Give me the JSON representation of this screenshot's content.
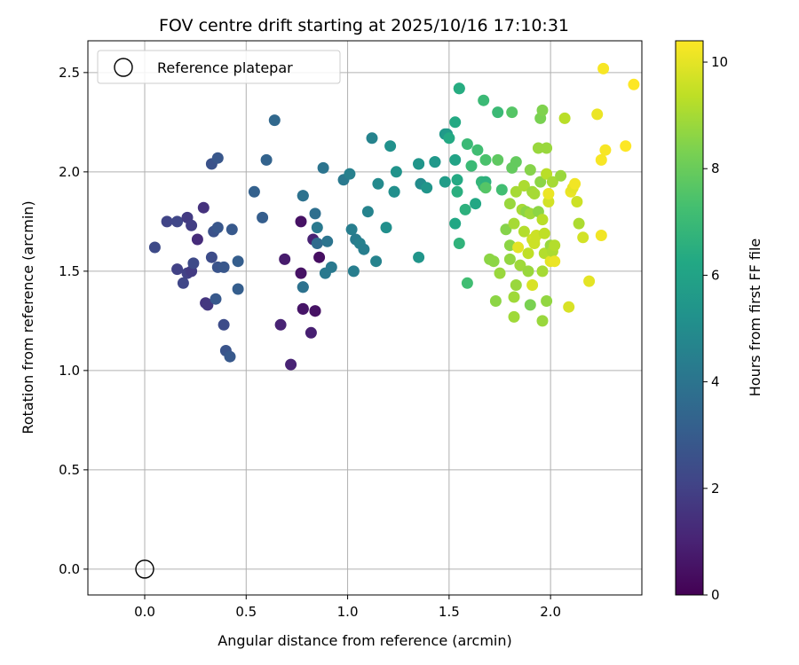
{
  "chart_data": {
    "type": "scatter",
    "title": "FOV centre drift starting at 2025/10/16 17:10:31",
    "xlabel": "Angular distance from reference (arcmin)",
    "ylabel": "Rotation from reference (arcmin)",
    "xlim": [
      -0.28,
      2.45
    ],
    "ylim": [
      -0.13,
      2.66
    ],
    "xticks": [
      "0.0",
      "0.5",
      "1.0",
      "1.5",
      "2.0"
    ],
    "yticks": [
      "0.0",
      "0.5",
      "1.0",
      "1.5",
      "2.0",
      "2.5"
    ],
    "grid": true,
    "colormap": "viridis",
    "colorbar": {
      "label": "Hours from first FF file",
      "range": [
        0,
        10.4
      ],
      "ticks": [
        "0",
        "2",
        "4",
        "6",
        "8",
        "10"
      ]
    },
    "legend": {
      "position": "top-left",
      "entries": [
        "Reference platepar"
      ]
    },
    "reference_point": {
      "x": 0.0,
      "y": 0.0
    },
    "points": [
      [
        0.05,
        1.62,
        2.3
      ],
      [
        0.11,
        1.75,
        2.1
      ],
      [
        0.16,
        1.75,
        2.2
      ],
      [
        0.16,
        1.51,
        2.0
      ],
      [
        0.19,
        1.44,
        2.2
      ],
      [
        0.21,
        1.49,
        2.0
      ],
      [
        0.21,
        1.77,
        1.8
      ],
      [
        0.23,
        1.73,
        1.9
      ],
      [
        0.23,
        1.5,
        1.8
      ],
      [
        0.24,
        1.54,
        2.3
      ],
      [
        0.26,
        1.66,
        1.3
      ],
      [
        0.29,
        1.82,
        1.5
      ],
      [
        0.3,
        1.34,
        1.6
      ],
      [
        0.31,
        1.33,
        1.7
      ],
      [
        0.33,
        1.57,
        2.4
      ],
      [
        0.33,
        2.04,
        2.6
      ],
      [
        0.34,
        1.7,
        2.6
      ],
      [
        0.35,
        1.36,
        2.9
      ],
      [
        0.36,
        1.72,
        2.8
      ],
      [
        0.36,
        2.07,
        2.8
      ],
      [
        0.36,
        1.52,
        2.7
      ],
      [
        0.39,
        1.52,
        2.8
      ],
      [
        0.39,
        1.23,
        2.4
      ],
      [
        0.4,
        1.1,
        2.7
      ],
      [
        0.42,
        1.07,
        2.9
      ],
      [
        0.43,
        1.71,
        2.9
      ],
      [
        0.46,
        1.55,
        3.1
      ],
      [
        0.46,
        1.41,
        3.1
      ],
      [
        0.54,
        1.9,
        3.2
      ],
      [
        0.58,
        1.77,
        3.1
      ],
      [
        0.6,
        2.06,
        3.3
      ],
      [
        0.64,
        2.26,
        3.5
      ],
      [
        0.67,
        1.23,
        1.0
      ],
      [
        0.69,
        1.56,
        0.8
      ],
      [
        0.72,
        1.03,
        1.0
      ],
      [
        0.77,
        1.75,
        0.5
      ],
      [
        0.77,
        1.49,
        0.5
      ],
      [
        0.78,
        1.31,
        0.4
      ],
      [
        0.78,
        1.31,
        0.6
      ],
      [
        0.78,
        1.42,
        3.7
      ],
      [
        0.78,
        1.42,
        3.9
      ],
      [
        0.78,
        1.88,
        3.8
      ],
      [
        0.78,
        1.88,
        3.9
      ],
      [
        0.82,
        1.19,
        0.9
      ],
      [
        0.83,
        1.66,
        1.0
      ],
      [
        0.84,
        1.3,
        0.6
      ],
      [
        0.84,
        1.3,
        0.5
      ],
      [
        0.84,
        1.79,
        3.8
      ],
      [
        0.85,
        1.64,
        3.6
      ],
      [
        0.85,
        1.72,
        4.2
      ],
      [
        0.86,
        1.57,
        0.4
      ],
      [
        0.88,
        2.02,
        4.0
      ],
      [
        0.89,
        1.49,
        4.2
      ],
      [
        0.9,
        1.65,
        4.0
      ],
      [
        0.92,
        1.52,
        4.2
      ],
      [
        0.98,
        1.96,
        4.2
      ],
      [
        1.01,
        1.99,
        4.5
      ],
      [
        1.02,
        1.71,
        4.4
      ],
      [
        1.03,
        1.5,
        4.4
      ],
      [
        1.04,
        1.66,
        4.3
      ],
      [
        1.06,
        1.64,
        4.5
      ],
      [
        1.08,
        1.61,
        4.4
      ],
      [
        1.1,
        1.8,
        4.6
      ],
      [
        1.12,
        2.17,
        4.6
      ],
      [
        1.14,
        1.55,
        4.6
      ],
      [
        1.15,
        1.94,
        4.9
      ],
      [
        1.19,
        1.72,
        5.1
      ],
      [
        1.21,
        2.13,
        5.2
      ],
      [
        1.23,
        1.9,
        5.0
      ],
      [
        1.23,
        1.9,
        5.1
      ],
      [
        1.24,
        2.0,
        5.3
      ],
      [
        1.35,
        2.04,
        5.3
      ],
      [
        1.35,
        2.04,
        5.4
      ],
      [
        1.35,
        1.57,
        5.4
      ],
      [
        1.36,
        1.94,
        5.0
      ],
      [
        1.39,
        1.92,
        5.4
      ],
      [
        1.43,
        2.05,
        5.4
      ],
      [
        1.43,
        2.05,
        5.5
      ],
      [
        1.48,
        1.95,
        5.7
      ],
      [
        1.48,
        2.19,
        5.5
      ],
      [
        1.49,
        2.19,
        5.6
      ],
      [
        1.5,
        2.17,
        6.3
      ],
      [
        1.53,
        1.74,
        6.2
      ],
      [
        1.53,
        2.06,
        6.0
      ],
      [
        1.53,
        2.25,
        6.3
      ],
      [
        1.54,
        1.96,
        6.3
      ],
      [
        1.54,
        1.9,
        6.5
      ],
      [
        1.55,
        2.42,
        6.5
      ],
      [
        1.55,
        2.42,
        6.4
      ],
      [
        1.55,
        1.64,
        6.7
      ],
      [
        1.58,
        1.81,
        6.6
      ],
      [
        1.59,
        1.44,
        7.2
      ],
      [
        1.59,
        2.14,
        7.0
      ],
      [
        1.61,
        2.03,
        7.0
      ],
      [
        1.63,
        1.84,
        6.2
      ],
      [
        1.64,
        2.11,
        7.2
      ],
      [
        1.66,
        1.95,
        6.8
      ],
      [
        1.67,
        2.36,
        7.0
      ],
      [
        1.67,
        1.93,
        6.9
      ],
      [
        1.68,
        1.95,
        6.6
      ],
      [
        1.68,
        2.06,
        7.4
      ],
      [
        1.68,
        1.92,
        7.6
      ],
      [
        1.7,
        1.56,
        8.6
      ],
      [
        1.72,
        1.55,
        8.6
      ],
      [
        1.73,
        1.35,
        8.6
      ],
      [
        1.74,
        2.3,
        7.0
      ],
      [
        1.74,
        2.06,
        7.8
      ],
      [
        1.75,
        1.49,
        8.8
      ],
      [
        1.76,
        1.91,
        7.2
      ],
      [
        1.78,
        1.71,
        8.5
      ],
      [
        1.8,
        1.63,
        8.6
      ],
      [
        1.8,
        1.56,
        8.7
      ],
      [
        1.8,
        1.84,
        8.8
      ],
      [
        1.81,
        2.3,
        7.6
      ],
      [
        1.81,
        2.02,
        7.9
      ],
      [
        1.82,
        1.37,
        8.9
      ],
      [
        1.82,
        1.27,
        8.9
      ],
      [
        1.82,
        1.74,
        9.0
      ],
      [
        1.83,
        1.9,
        9.0
      ],
      [
        1.83,
        1.43,
        8.8
      ],
      [
        1.83,
        2.05,
        7.9
      ],
      [
        1.84,
        1.62,
        10.0
      ],
      [
        1.85,
        1.53,
        8.9
      ],
      [
        1.86,
        1.81,
        9.0
      ],
      [
        1.87,
        1.7,
        9.2
      ],
      [
        1.87,
        1.93,
        9.1
      ],
      [
        1.88,
        1.8,
        8.6
      ],
      [
        1.89,
        1.5,
        8.8
      ],
      [
        1.89,
        1.59,
        9.4
      ],
      [
        1.9,
        2.01,
        8.5
      ],
      [
        1.9,
        1.33,
        8.3
      ],
      [
        1.9,
        1.79,
        8.9
      ],
      [
        1.91,
        1.9,
        8.9
      ],
      [
        1.91,
        1.43,
        9.8
      ],
      [
        1.91,
        1.66,
        9.6
      ],
      [
        1.92,
        1.89,
        9.0
      ],
      [
        1.92,
        1.66,
        9.7
      ],
      [
        1.92,
        1.64,
        9.6
      ],
      [
        1.93,
        1.68,
        9.6
      ],
      [
        1.94,
        1.8,
        8.6
      ],
      [
        1.94,
        2.12,
        8.8
      ],
      [
        1.95,
        2.27,
        8.3
      ],
      [
        1.95,
        1.95,
        8.6
      ],
      [
        1.96,
        1.25,
        8.8
      ],
      [
        1.96,
        2.31,
        8.4
      ],
      [
        1.96,
        1.5,
        9.0
      ],
      [
        1.96,
        1.76,
        9.3
      ],
      [
        1.97,
        1.69,
        9.4
      ],
      [
        1.97,
        1.59,
        9.2
      ],
      [
        1.98,
        1.35,
        8.7
      ],
      [
        1.98,
        2.12,
        8.8
      ],
      [
        1.98,
        1.99,
        9.3
      ],
      [
        1.99,
        1.85,
        9.7
      ],
      [
        1.99,
        1.89,
        10.1
      ],
      [
        2.0,
        1.55,
        10.0
      ],
      [
        2.0,
        1.63,
        8.8
      ],
      [
        2.01,
        1.95,
        9.0
      ],
      [
        2.01,
        1.6,
        9.1
      ],
      [
        2.02,
        1.55,
        10.1
      ],
      [
        2.02,
        1.63,
        9.2
      ],
      [
        2.05,
        1.98,
        8.8
      ],
      [
        2.07,
        2.27,
        9.3
      ],
      [
        2.09,
        1.32,
        9.8
      ],
      [
        2.1,
        1.9,
        10.1
      ],
      [
        2.11,
        1.92,
        10.0
      ],
      [
        2.12,
        1.94,
        10.2
      ],
      [
        2.13,
        1.85,
        9.6
      ],
      [
        2.14,
        1.74,
        9.1
      ],
      [
        2.16,
        1.67,
        9.7
      ],
      [
        2.19,
        1.45,
        10.0
      ],
      [
        2.23,
        2.29,
        10.1
      ],
      [
        2.25,
        1.68,
        10.2
      ],
      [
        2.25,
        2.06,
        10.3
      ],
      [
        2.26,
        2.52,
        10.3
      ],
      [
        2.27,
        2.11,
        10.3
      ],
      [
        2.37,
        2.13,
        10.4
      ],
      [
        2.41,
        2.44,
        10.4
      ]
    ]
  }
}
